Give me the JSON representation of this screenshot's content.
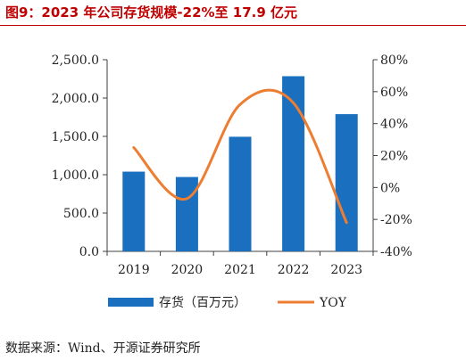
{
  "header": {
    "title": "图9：2023 年公司存货规模-22%至 17.9 亿元"
  },
  "source": "数据来源：Wind、开源证券研究所",
  "colors": {
    "bar": "#1a6fbf",
    "line": "#ed7d31",
    "title": "#c00000"
  },
  "chart_data": {
    "type": "bar",
    "categories": [
      "2019",
      "2020",
      "2021",
      "2022",
      "2023"
    ],
    "series": [
      {
        "name": "存货（百万元）",
        "type": "bar",
        "axis": "left",
        "values": [
          1040,
          970,
          1495,
          2285,
          1790
        ]
      },
      {
        "name": "YOY",
        "type": "line",
        "axis": "right",
        "values": [
          25,
          -7,
          52,
          53,
          -22
        ]
      }
    ],
    "y_left": {
      "ylim": [
        0,
        2500
      ],
      "ticks": [
        0,
        500,
        1000,
        1500,
        2000,
        2500
      ],
      "tick_labels": [
        "0.0",
        "500.0",
        "1,000.0",
        "1,500.0",
        "2,000.0",
        "2,500.0"
      ]
    },
    "y_right": {
      "ylim": [
        -40,
        80
      ],
      "ticks": [
        -40,
        -20,
        0,
        20,
        40,
        60,
        80
      ],
      "tick_labels": [
        "-40%",
        "-20%",
        "0%",
        "20%",
        "40%",
        "60%",
        "80%"
      ]
    },
    "grid": false,
    "legend": {
      "position": "bottom",
      "entries": [
        "存货（百万元）",
        "YOY"
      ]
    }
  }
}
